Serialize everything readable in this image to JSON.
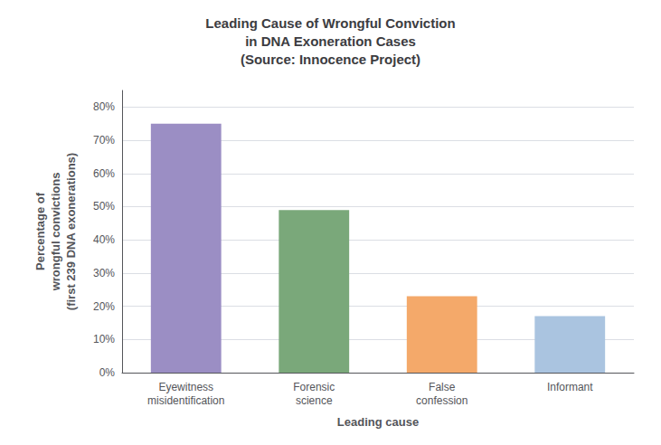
{
  "chart_data": {
    "type": "bar",
    "title": "Leading Cause of Wrongful Conviction\nin DNA Exoneration Cases\n(Source: Innocence Project)",
    "xlabel": "Leading cause",
    "ylabel": "Percentage of\nwrongful convictions\n(first 239 DNA exonerations)",
    "categories": [
      "Eyewitness\nmisidentification",
      "Forensic\nscience",
      "False\nconfession",
      "Informant"
    ],
    "values": [
      75,
      49,
      23,
      17
    ],
    "colors": [
      "#9b8ec4",
      "#7aA87a",
      "#f4a96a",
      "#aac4e0"
    ],
    "ylim": [
      0,
      85
    ],
    "yticks": [
      {
        "value": 0,
        "label": "0%"
      },
      {
        "value": 10,
        "label": "10%"
      },
      {
        "value": 20,
        "label": "20%"
      },
      {
        "value": 30,
        "label": "30%"
      },
      {
        "value": 40,
        "label": "40%"
      },
      {
        "value": 50,
        "label": "50%"
      },
      {
        "value": 60,
        "label": "60%"
      },
      {
        "value": 70,
        "label": "70%"
      },
      {
        "value": 80,
        "label": "80%"
      }
    ],
    "grid": true
  }
}
